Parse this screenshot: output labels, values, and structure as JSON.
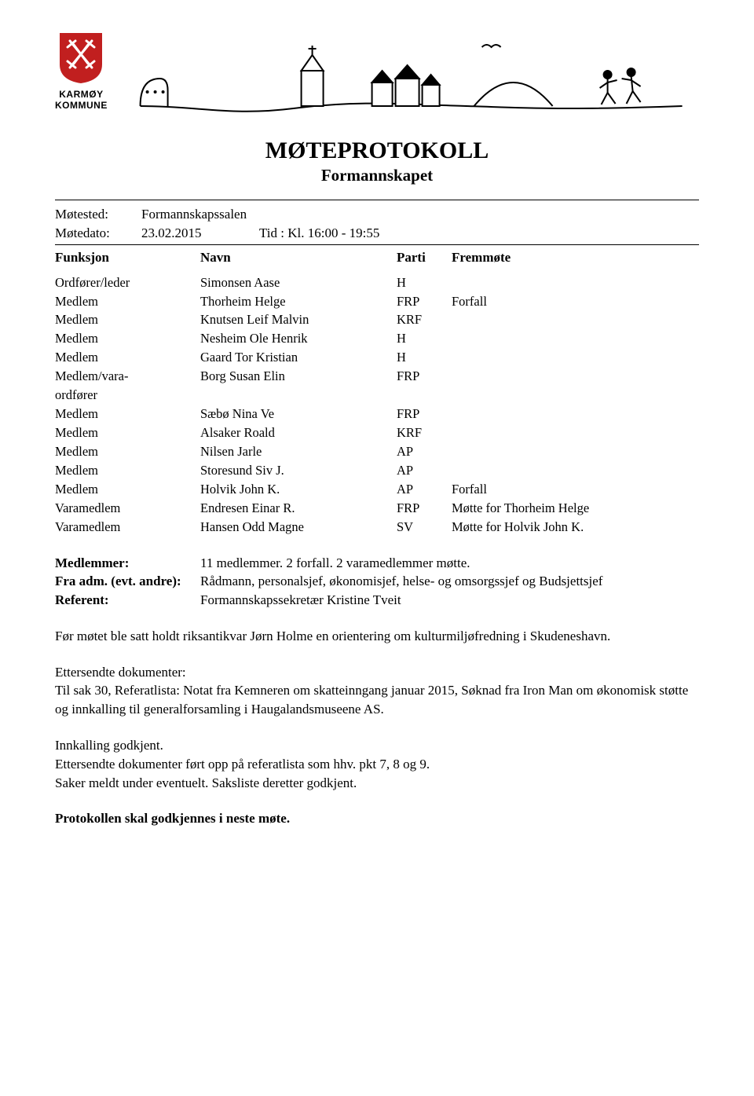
{
  "header": {
    "org_line1": "KARMØY",
    "org_line2": "KOMMUNE",
    "shield_color": "#c11f1f",
    "title": "MØTEPROTOKOLL",
    "subtitle": "Formannskapet"
  },
  "meta": {
    "motested_label": "Møtested:",
    "motested_value": "Formannskapssalen",
    "motedato_label": "Møtedato:",
    "motedato_value": "23.02.2015",
    "tid_label": "Tid : Kl. 16:00 - 19:55"
  },
  "table": {
    "columns": {
      "funksjon": "Funksjon",
      "navn": "Navn",
      "parti": "Parti",
      "fremmote": "Fremmøte"
    },
    "rows": [
      {
        "funksjon": "Ordfører/leder",
        "navn": "Simonsen Aase",
        "parti": "H",
        "fremmote": ""
      },
      {
        "funksjon": "Medlem",
        "navn": "Thorheim Helge",
        "parti": "FRP",
        "fremmote": "Forfall"
      },
      {
        "funksjon": "Medlem",
        "navn": "Knutsen Leif Malvin",
        "parti": "KRF",
        "fremmote": ""
      },
      {
        "funksjon": "Medlem",
        "navn": "Nesheim Ole Henrik",
        "parti": "H",
        "fremmote": ""
      },
      {
        "funksjon": "Medlem",
        "navn": "Gaard Tor Kristian",
        "parti": "H",
        "fremmote": ""
      },
      {
        "funksjon": "Medlem/vara-ordfører",
        "navn": "Borg Susan Elin",
        "parti": "FRP",
        "fremmote": ""
      },
      {
        "funksjon": "Medlem",
        "navn": "Sæbø Nina Ve",
        "parti": "FRP",
        "fremmote": ""
      },
      {
        "funksjon": "Medlem",
        "navn": "Alsaker Roald",
        "parti": "KRF",
        "fremmote": ""
      },
      {
        "funksjon": "Medlem",
        "navn": "Nilsen Jarle",
        "parti": "AP",
        "fremmote": ""
      },
      {
        "funksjon": "Medlem",
        "navn": "Storesund Siv J.",
        "parti": "AP",
        "fremmote": ""
      },
      {
        "funksjon": "Medlem",
        "navn": "Holvik John K.",
        "parti": "AP",
        "fremmote": "Forfall"
      },
      {
        "funksjon": "Varamedlem",
        "navn": "Endresen Einar R.",
        "parti": "FRP",
        "fremmote": "Møtte for Thorheim Helge"
      },
      {
        "funksjon": "Varamedlem",
        "navn": "Hansen Odd Magne",
        "parti": "SV",
        "fremmote": "Møtte for Holvik John K."
      }
    ]
  },
  "info": {
    "medlemmer_label": "Medlemmer:",
    "medlemmer_value": "11 medlemmer. 2 forfall. 2 varamedlemmer møtte.",
    "fra_adm_label": "Fra adm. (evt. andre):",
    "fra_adm_value": "Rådmann, personalsjef, økonomisjef, helse- og omsorgssjef og Budsjettsjef",
    "referent_label": "Referent:",
    "referent_value": "Formannskapssekretær Kristine Tveit"
  },
  "paragraphs": {
    "p1": "Før møtet ble satt holdt riksantikvar Jørn Holme en orientering om kulturmiljøfredning i Skudeneshavn.",
    "p2_l1": "Ettersendte dokumenter:",
    "p2_l2": "Til sak 30, Referatlista: Notat fra Kemneren om skatteinngang januar 2015, Søknad fra Iron Man om økonomisk støtte og innkalling til generalforsamling i Haugalandsmuseene AS.",
    "p3_l1": "Innkalling godkjent.",
    "p3_l2": "Ettersendte dokumenter ført opp på referatlista som hhv. pkt 7, 8 og 9.",
    "p3_l3": "Saker meldt under eventuelt. Saksliste deretter godkjent.",
    "p4": "Protokollen skal godkjennes i neste møte."
  }
}
